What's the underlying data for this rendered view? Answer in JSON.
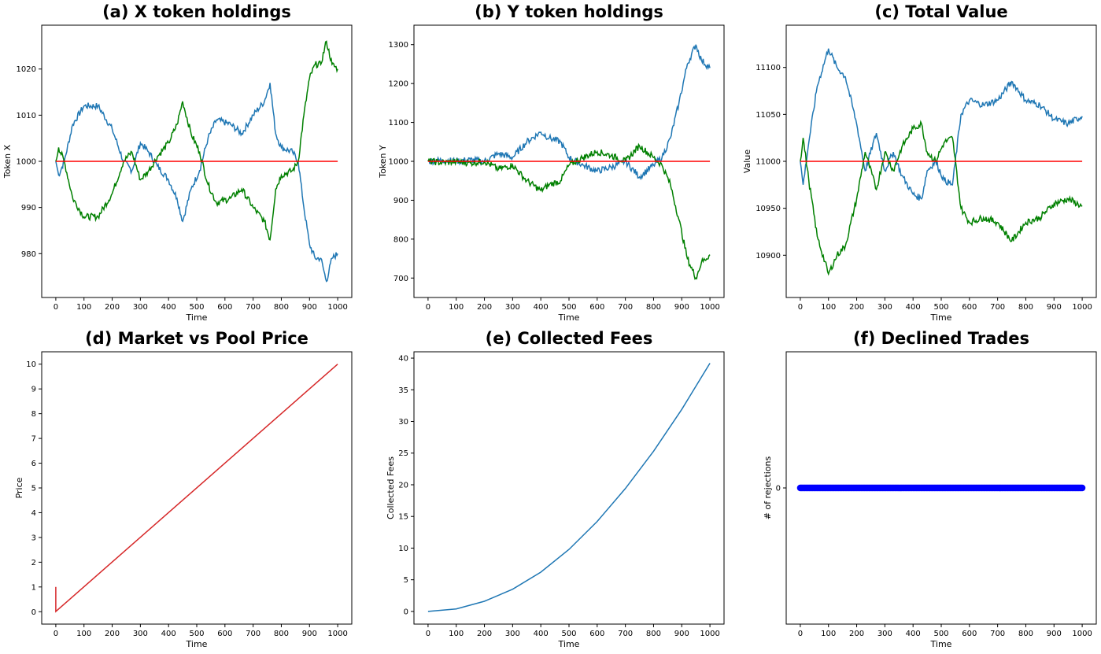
{
  "colors": {
    "series_blue": "#1f77b4",
    "series_green": "#008000",
    "reference_red": "#ff0000",
    "price_line": "#d62728",
    "declined_marker": "#0000ff"
  },
  "chart_data": [
    {
      "type": "line",
      "title": "(a) X token holdings",
      "xlabel": "Time",
      "ylabel": "Token X",
      "xlim": [
        -50,
        1050
      ],
      "ylim": [
        970.5,
        1029.5
      ],
      "xticks": [
        "0",
        "100",
        "200",
        "300",
        "400",
        "500",
        "600",
        "700",
        "800",
        "900",
        "1000"
      ],
      "yticks": [
        "980",
        "990",
        "1000",
        "1010",
        "1020"
      ],
      "series": [
        {
          "color": "#1f77b4",
          "x": [
            0,
            10,
            30,
            60,
            100,
            150,
            200,
            240,
            270,
            300,
            330,
            360,
            400,
            430,
            450,
            480,
            510,
            540,
            570,
            620,
            660,
            700,
            740,
            760,
            780,
            800,
            840,
            860,
            880,
            900,
            920,
            940,
            960,
            980,
            1000
          ],
          "y": [
            1000,
            997,
            1000,
            1008,
            1012,
            1012,
            1007,
            1000,
            998,
            1004,
            1002,
            999,
            996,
            992,
            987,
            994,
            998,
            1005,
            1009,
            1008,
            1006,
            1010,
            1013,
            1017,
            1006,
            1003,
            1002,
            1000,
            990,
            982,
            979,
            979,
            974,
            979,
            980
          ]
        },
        {
          "color": "#008000",
          "x": [
            0,
            10,
            30,
            60,
            100,
            150,
            200,
            240,
            270,
            300,
            330,
            360,
            400,
            430,
            450,
            480,
            510,
            540,
            570,
            620,
            660,
            700,
            740,
            760,
            780,
            800,
            840,
            860,
            880,
            900,
            920,
            940,
            960,
            980,
            1000
          ],
          "y": [
            1000,
            1003,
            1000,
            992,
            988,
            988,
            993,
            1000,
            1002,
            996,
            998,
            1001,
            1004,
            1008,
            1013,
            1006,
            1002,
            995,
            991,
            992,
            994,
            990,
            987,
            983,
            994,
            997,
            998,
            1000,
            1010,
            1018,
            1021,
            1021,
            1026,
            1021,
            1020
          ]
        },
        {
          "color": "#ff0000",
          "x": [
            0,
            1000
          ],
          "y": [
            1000,
            1000
          ]
        }
      ]
    },
    {
      "type": "line",
      "title": "(b) Y token holdings",
      "xlabel": "Time",
      "ylabel": "Token Y",
      "xlim": [
        -50,
        1050
      ],
      "ylim": [
        650,
        1350
      ],
      "xticks": [
        "0",
        "100",
        "200",
        "300",
        "400",
        "500",
        "600",
        "700",
        "800",
        "900",
        "1000"
      ],
      "yticks": [
        "700",
        "800",
        "900",
        "1000",
        "1100",
        "1200",
        "1300"
      ],
      "series": [
        {
          "color": "#1f77b4",
          "x": [
            0,
            50,
            100,
            150,
            200,
            250,
            300,
            350,
            400,
            430,
            470,
            500,
            550,
            600,
            650,
            700,
            750,
            800,
            830,
            860,
            890,
            920,
            950,
            970,
            1000
          ],
          "y": [
            1000,
            1003,
            1001,
            1004,
            1000,
            1020,
            1010,
            1050,
            1075,
            1060,
            1050,
            1010,
            990,
            975,
            985,
            1000,
            960,
            990,
            1010,
            1060,
            1150,
            1250,
            1300,
            1260,
            1240
          ]
        },
        {
          "color": "#008000",
          "x": [
            0,
            50,
            100,
            150,
            200,
            250,
            300,
            350,
            400,
            430,
            470,
            500,
            550,
            600,
            650,
            700,
            750,
            800,
            830,
            860,
            890,
            920,
            950,
            970,
            1000
          ],
          "y": [
            1000,
            997,
            999,
            996,
            1000,
            980,
            990,
            950,
            925,
            940,
            950,
            990,
            1010,
            1025,
            1015,
            1000,
            1040,
            1010,
            990,
            940,
            850,
            750,
            700,
            740,
            760
          ]
        },
        {
          "color": "#ff0000",
          "x": [
            0,
            1000
          ],
          "y": [
            1000,
            1000
          ]
        }
      ]
    },
    {
      "type": "line",
      "title": "(c) Total Value",
      "xlabel": "Time",
      "ylabel": "Value",
      "xlim": [
        -50,
        1050
      ],
      "ylim": [
        10855,
        11145
      ],
      "xticks": [
        "0",
        "100",
        "200",
        "300",
        "400",
        "500",
        "600",
        "700",
        "800",
        "900",
        "1000"
      ],
      "yticks": [
        "10900",
        "10950",
        "11000",
        "11050",
        "11100"
      ],
      "series": [
        {
          "color": "#1f77b4",
          "x": [
            0,
            10,
            30,
            60,
            100,
            130,
            160,
            200,
            230,
            270,
            300,
            330,
            360,
            400,
            430,
            450,
            480,
            510,
            540,
            570,
            600,
            650,
            700,
            750,
            800,
            850,
            900,
            950,
            1000
          ],
          "y": [
            11000,
            10975,
            11020,
            11080,
            11120,
            11100,
            11090,
            11040,
            10990,
            11030,
            10990,
            11010,
            10985,
            10965,
            10960,
            10990,
            11000,
            10980,
            10975,
            11050,
            11065,
            11060,
            11065,
            11085,
            11065,
            11060,
            11045,
            11040,
            11048
          ]
        },
        {
          "color": "#008000",
          "x": [
            0,
            10,
            30,
            60,
            100,
            130,
            160,
            200,
            230,
            270,
            300,
            330,
            360,
            400,
            430,
            450,
            480,
            510,
            540,
            570,
            600,
            650,
            700,
            750,
            800,
            850,
            900,
            950,
            1000
          ],
          "y": [
            11000,
            11025,
            10980,
            10920,
            10880,
            10900,
            10910,
            10960,
            11010,
            10970,
            11010,
            10990,
            11015,
            11035,
            11040,
            11010,
            11000,
            11020,
            11025,
            10950,
            10935,
            10940,
            10935,
            10915,
            10935,
            10940,
            10955,
            10960,
            10952
          ]
        },
        {
          "color": "#ff0000",
          "x": [
            0,
            1000
          ],
          "y": [
            11000,
            11000
          ]
        }
      ]
    },
    {
      "type": "line",
      "title": "(d) Market vs Pool Price",
      "xlabel": "Time",
      "ylabel": "Price",
      "xlim": [
        -50,
        1050
      ],
      "ylim": [
        -0.5,
        10.5
      ],
      "xticks": [
        "0",
        "100",
        "200",
        "300",
        "400",
        "500",
        "600",
        "700",
        "800",
        "900",
        "1000"
      ],
      "yticks": [
        "0",
        "1",
        "2",
        "3",
        "4",
        "5",
        "6",
        "7",
        "8",
        "9",
        "10"
      ],
      "series": [
        {
          "color": "#d62728",
          "x": [
            0,
            0,
            1000
          ],
          "y": [
            1,
            0.01,
            10
          ]
        }
      ]
    },
    {
      "type": "line",
      "title": "(e) Collected Fees",
      "xlabel": "Time",
      "ylabel": "Collected Fees",
      "xlim": [
        -50,
        1050
      ],
      "ylim": [
        -2,
        41
      ],
      "xticks": [
        "0",
        "100",
        "200",
        "300",
        "400",
        "500",
        "600",
        "700",
        "800",
        "900",
        "1000"
      ],
      "yticks": [
        "0",
        "5",
        "10",
        "15",
        "20",
        "25",
        "30",
        "35",
        "40"
      ],
      "series": [
        {
          "color": "#1f77b4",
          "x": [
            0,
            100,
            200,
            300,
            400,
            500,
            600,
            700,
            800,
            900,
            1000
          ],
          "y": [
            0,
            0.4,
            1.6,
            3.5,
            6.2,
            9.8,
            14.2,
            19.4,
            25.3,
            31.9,
            39.2
          ]
        }
      ]
    },
    {
      "type": "scatter",
      "title": "(f) Declined Trades",
      "xlabel": "Time",
      "ylabel": "# of rejections",
      "xlim": [
        -50,
        1050
      ],
      "ylim": [
        -0.055,
        0.055
      ],
      "xticks": [
        "0",
        "100",
        "200",
        "300",
        "400",
        "500",
        "600",
        "700",
        "800",
        "900",
        "1000"
      ],
      "yticks": [
        "0"
      ],
      "series": [
        {
          "color": "#0000ff",
          "x_range": [
            0,
            1000
          ],
          "y": 0
        }
      ]
    }
  ]
}
